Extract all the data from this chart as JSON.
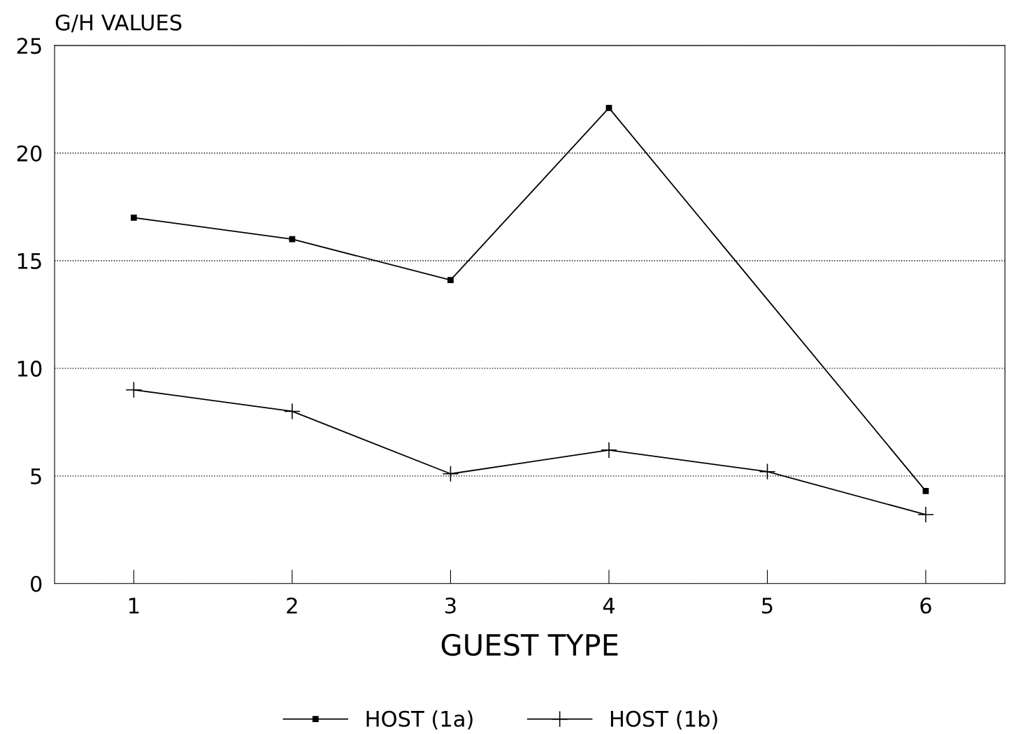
{
  "chart_data": {
    "type": "line",
    "xlabel": "GUEST TYPE",
    "ylabel": "G/H VALUES",
    "xlim": [
      0.5,
      6.5
    ],
    "xticks": [
      1,
      2,
      3,
      4,
      5,
      6
    ],
    "ylim": [
      0,
      25
    ],
    "yticks": [
      0,
      5,
      10,
      15,
      20,
      25
    ],
    "grid": "y",
    "legend": "bottom",
    "series": [
      {
        "name": "HOST (1a)",
        "color": "#000000",
        "marker": "square",
        "x": [
          1,
          2,
          3,
          4,
          6
        ],
        "values": [
          17,
          16,
          14.1,
          22.1,
          4.3
        ]
      },
      {
        "name": "HOST (1b)",
        "color": "#000000",
        "marker": "cross",
        "x": [
          1,
          2,
          3,
          4,
          5,
          6
        ],
        "values": [
          9,
          8,
          5.1,
          6.2,
          5.2,
          3.2
        ]
      }
    ]
  }
}
